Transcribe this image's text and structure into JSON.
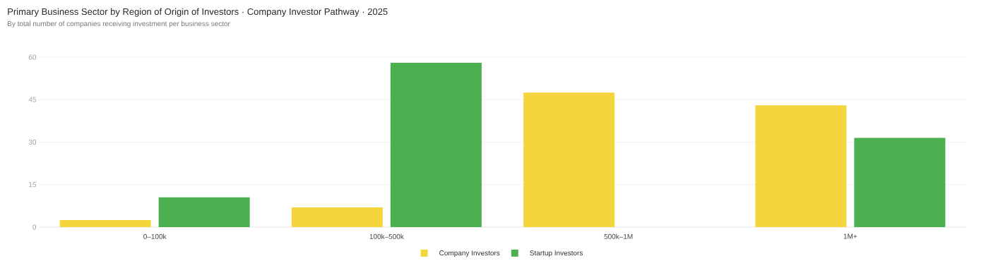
{
  "chart_data": {
    "type": "bar",
    "title": "Primary Business Sector by Region of Origin of Investors · Company Investor Pathway · 2025",
    "subtitle": "By total number of companies receiving investment per business sector",
    "categories": [
      "0–100k",
      "100k–500k",
      "500k–1M",
      "1M+"
    ],
    "series": [
      {
        "name": "Company Investors",
        "color": "#f4d63c",
        "values": [
          2.5,
          7,
          47.5,
          43
        ]
      },
      {
        "name": "Startup Investors",
        "color": "#4caf50",
        "values": [
          10.5,
          58,
          0,
          31.5
        ]
      }
    ],
    "ylim": [
      0,
      60
    ],
    "yticks": [
      0,
      15,
      30,
      45,
      60
    ],
    "grid": "y",
    "legend": "bottom"
  }
}
